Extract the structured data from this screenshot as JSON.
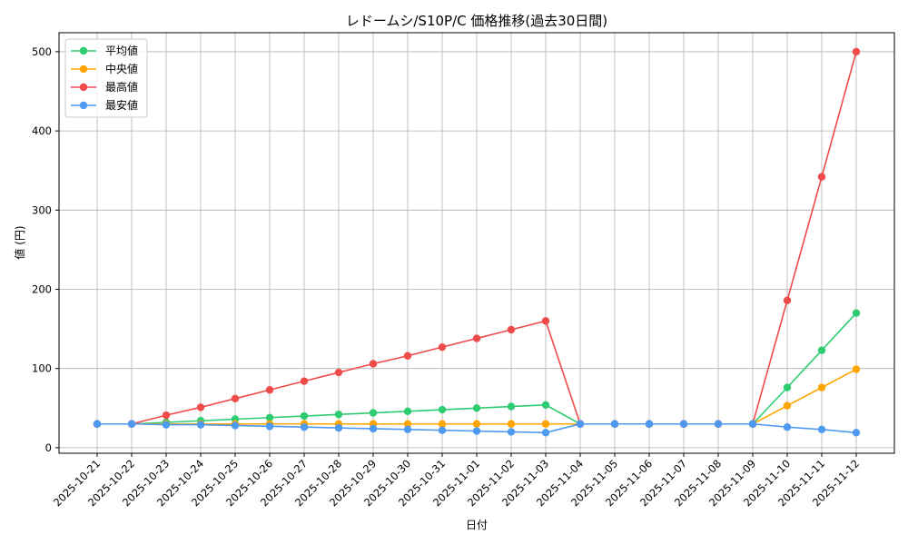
{
  "chart_data": {
    "type": "line",
    "title": "レドームシ/S10P/C 価格推移(過去30日間)",
    "xlabel": "日付",
    "ylabel": "値 (円)",
    "ylim": [
      -7,
      524
    ],
    "yticks": [
      0,
      100,
      200,
      300,
      400,
      500
    ],
    "grid": true,
    "legend_position": "top-left",
    "categories": [
      "2025-10-21",
      "2025-10-22",
      "2025-10-23",
      "2025-10-24",
      "2025-10-25",
      "2025-10-26",
      "2025-10-27",
      "2025-10-28",
      "2025-10-29",
      "2025-10-30",
      "2025-10-31",
      "2025-11-01",
      "2025-11-02",
      "2025-11-03",
      "2025-11-04",
      "2025-11-05",
      "2025-11-06",
      "2025-11-07",
      "2025-11-08",
      "2025-11-09",
      "2025-11-10",
      "2025-11-11",
      "2025-11-12"
    ],
    "series": [
      {
        "name": "平均値",
        "color": "#2ecc71",
        "values": [
          30,
          30,
          32,
          34,
          36,
          38,
          40,
          42,
          44,
          46,
          48,
          50,
          52,
          54,
          30,
          30,
          30,
          30,
          30,
          30,
          76,
          123,
          170
        ]
      },
      {
        "name": "中央値",
        "color": "#ffa500",
        "values": [
          30,
          30,
          30,
          30,
          30,
          30,
          30,
          30,
          30,
          30,
          30,
          30,
          30,
          30,
          30,
          30,
          30,
          30,
          30,
          30,
          53,
          76,
          99
        ]
      },
      {
        "name": "最高値",
        "color": "#f04a4a",
        "values": [
          30,
          30,
          41,
          51,
          62,
          73,
          84,
          95,
          106,
          116,
          127,
          138,
          149,
          160,
          30,
          30,
          30,
          30,
          30,
          30,
          186,
          342,
          500
        ]
      },
      {
        "name": "最安値",
        "color": "#4e9af1",
        "values": [
          30,
          30,
          29,
          29,
          28,
          27,
          26,
          25,
          24,
          23,
          22,
          21,
          20,
          19,
          30,
          30,
          30,
          30,
          30,
          30,
          26,
          23,
          19
        ]
      }
    ]
  }
}
